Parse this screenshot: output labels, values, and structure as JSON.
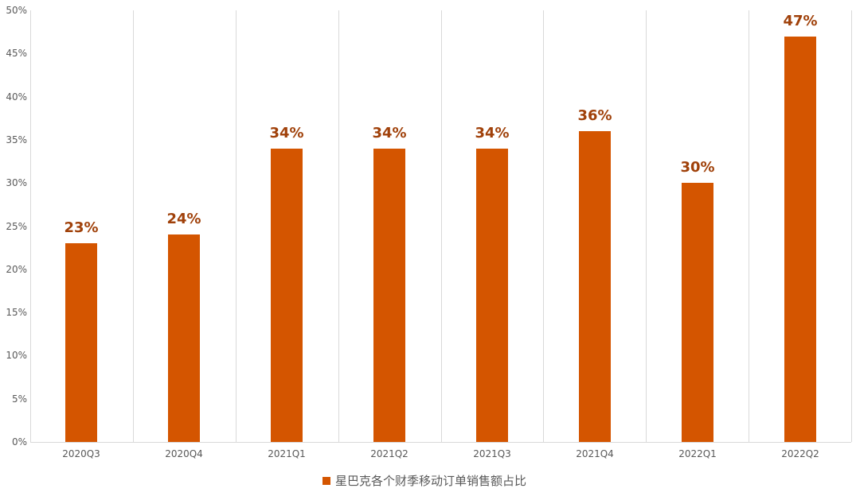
{
  "chart_data": {
    "type": "bar",
    "title": "",
    "xlabel": "",
    "ylabel": "",
    "categories": [
      "2020Q3",
      "2020Q4",
      "2021Q1",
      "2021Q2",
      "2021Q3",
      "2021Q4",
      "2022Q1",
      "2022Q2"
    ],
    "series": [
      {
        "name": "星巴克各个财季移动订单销售额占比",
        "values": [
          23,
          24,
          34,
          34,
          34,
          36,
          30,
          47
        ],
        "color": "#d45500"
      }
    ],
    "data_labels": [
      "23%",
      "24%",
      "34%",
      "34%",
      "34%",
      "36%",
      "30%",
      "47%"
    ],
    "ylim": [
      0,
      50
    ],
    "yticks": [
      "0%",
      "5%",
      "10%",
      "15%",
      "20%",
      "25%",
      "30%",
      "35%",
      "40%",
      "45%",
      "50%"
    ],
    "grid": "vertical category separators",
    "legend_position": "bottom"
  },
  "colors": {
    "bar": "#d45500",
    "label": "#a0410a",
    "axis_text": "#595959",
    "grid": "#d9d9d9"
  },
  "legend": {
    "label": "星巴克各个财季移动订单销售额占比"
  }
}
